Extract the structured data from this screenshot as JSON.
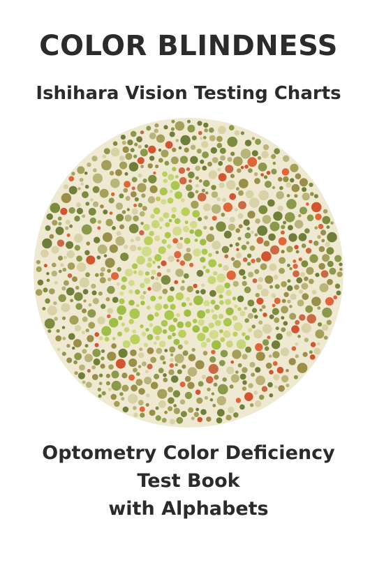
{
  "cover": {
    "title": "COLOR BLINDNESS",
    "subtitle": "Ishihara Vision Testing Charts",
    "bottom_lines": [
      "Optometry Color Deficiency",
      "Test Book",
      "with Alphabets"
    ]
  },
  "plate": {
    "hidden_letter": "A",
    "colors": {
      "background_palette": [
        "#8a9a4a",
        "#a4a05a",
        "#b9b47a",
        "#7c8c3e",
        "#d8d2a6",
        "#9a8f48",
        "#6f7f3a"
      ],
      "accent_palette": [
        "#e0663a",
        "#d2552f",
        "#c96a44"
      ],
      "figure_palette": [
        "#a9c84c",
        "#b9d05a",
        "#c6d77a",
        "#9dbf46",
        "#d3dc8c"
      ]
    }
  }
}
